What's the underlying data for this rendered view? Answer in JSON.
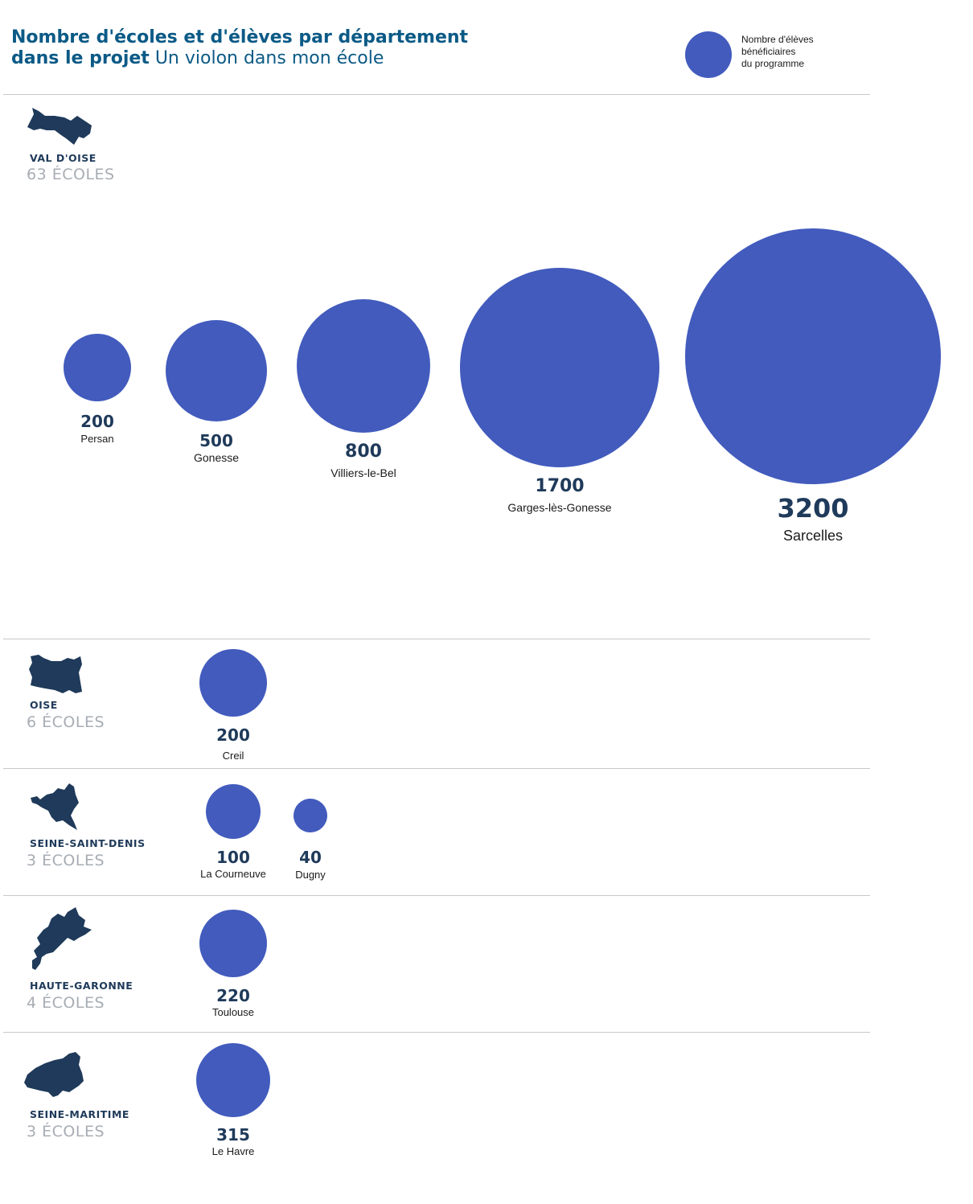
{
  "title": {
    "bold": "Nombre d'écoles et d'élèves par département",
    "bold2": "dans le projet",
    "thin": "Un violon dans mon école"
  },
  "legend": {
    "line1": "Nombre d'élèves",
    "line2": "bénéficiaires",
    "line3": "du programme"
  },
  "colors": {
    "bubble": "#425bbd",
    "map": "#1f3a5a",
    "title": "#0b5a86"
  },
  "departments": [
    {
      "name": "VAL D'OISE",
      "schools": "63 ÉCOLES",
      "cities": [
        {
          "value": "200",
          "city": "Persan"
        },
        {
          "value": "500",
          "city": "Gonesse"
        },
        {
          "value": "800",
          "city": "Villiers-le-Bel"
        },
        {
          "value": "1700",
          "city": "Garges-lès-Gonesse"
        },
        {
          "value": "3200",
          "city": "Sarcelles"
        }
      ]
    },
    {
      "name": "OISE",
      "schools": "6 ÉCOLES",
      "cities": [
        {
          "value": "200",
          "city": "Creil"
        }
      ]
    },
    {
      "name": "SEINE-SAINT-DENIS",
      "schools": "3 ÉCOLES",
      "cities": [
        {
          "value": "100",
          "city": "La Courneuve"
        },
        {
          "value": "40",
          "city": "Dugny"
        }
      ]
    },
    {
      "name": "HAUTE-GARONNE",
      "schools": "4 ÉCOLES",
      "cities": [
        {
          "value": "220",
          "city": "Toulouse"
        }
      ]
    },
    {
      "name": "SEINE-MARITIME",
      "schools": "3 ÉCOLES",
      "cities": [
        {
          "value": "315",
          "city": "Le Havre"
        }
      ]
    }
  ],
  "chart_data": {
    "type": "bubble",
    "title": "Nombre d'écoles et d'élèves par département dans le projet Un violon dans mon école",
    "series": [
      {
        "name": "VAL D'OISE",
        "schools": 63,
        "categories": [
          "Persan",
          "Gonesse",
          "Villiers-le-Bel",
          "Garges-lès-Gonesse",
          "Sarcelles"
        ],
        "values": [
          200,
          500,
          800,
          1700,
          3200
        ]
      },
      {
        "name": "OISE",
        "schools": 6,
        "categories": [
          "Creil"
        ],
        "values": [
          200
        ]
      },
      {
        "name": "SEINE-SAINT-DENIS",
        "schools": 3,
        "categories": [
          "La Courneuve",
          "Dugny"
        ],
        "values": [
          100,
          40
        ]
      },
      {
        "name": "HAUTE-GARONNE",
        "schools": 4,
        "categories": [
          "Toulouse"
        ],
        "values": [
          220
        ]
      },
      {
        "name": "SEINE-MARITIME",
        "schools": 3,
        "categories": [
          "Le Havre"
        ],
        "values": [
          315
        ]
      }
    ]
  }
}
